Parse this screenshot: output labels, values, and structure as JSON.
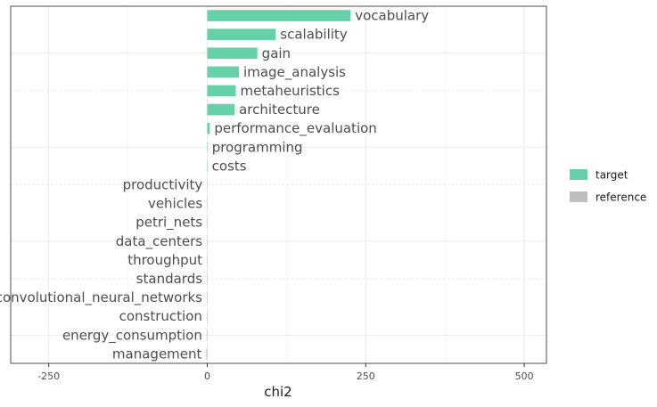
{
  "chart_data": {
    "type": "bar",
    "orientation": "horizontal",
    "xlabel": "chi2",
    "ylabel": "",
    "xlim": [
      -310,
      535
    ],
    "x_ticks": [
      -250,
      0,
      250,
      500
    ],
    "x_tick_labels": [
      "-250",
      "0",
      "250",
      "500"
    ],
    "grid": true,
    "legend_position": "right",
    "colors": {
      "target": "#66d1a8",
      "reference": "#bebebe"
    },
    "categories": [
      "vocabulary",
      "scalability",
      "gain",
      "image_analysis",
      "metaheuristics",
      "architecture",
      "performance_evaluation",
      "programming",
      "costs",
      "productivity",
      "vehicles",
      "petri_nets",
      "data_centers",
      "throughput",
      "standards",
      "convolutional_neural_networks",
      "construction",
      "energy_consumption",
      "management"
    ],
    "values": [
      226,
      108,
      79,
      50,
      45,
      43,
      4,
      0.3,
      0.2,
      -0.3,
      -0.4,
      -0.5,
      -0.5,
      -0.6,
      -0.6,
      -0.7,
      -0.8,
      -0.9,
      -1.5
    ],
    "groups": [
      "target",
      "target",
      "target",
      "target",
      "target",
      "target",
      "target",
      "target",
      "target",
      "reference",
      "reference",
      "reference",
      "reference",
      "reference",
      "reference",
      "reference",
      "reference",
      "reference",
      "reference"
    ],
    "series": [
      {
        "name": "target"
      },
      {
        "name": "reference"
      }
    ]
  }
}
